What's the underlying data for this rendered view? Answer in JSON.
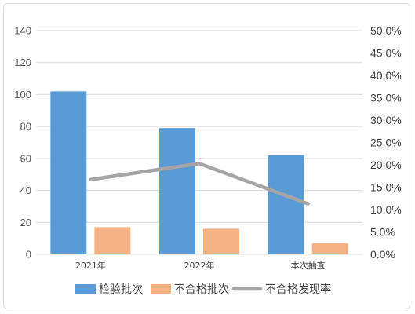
{
  "chart_data": {
    "type": "bar",
    "categories": [
      "2021年",
      "2022年",
      "本次抽查"
    ],
    "series": [
      {
        "name": "检验批次",
        "kind": "bar",
        "axis": "left",
        "color": "#5b9bd5",
        "values": [
          102,
          79,
          62
        ]
      },
      {
        "name": "不合格批次",
        "kind": "bar",
        "axis": "left",
        "color": "#f4b183",
        "values": [
          17,
          16,
          7
        ]
      },
      {
        "name": "不合格发现率",
        "kind": "line",
        "axis": "right",
        "color": "#a5a5a5",
        "values": [
          0.167,
          0.203,
          0.113
        ]
      }
    ],
    "y_left": {
      "min": 0,
      "max": 140,
      "step": 20,
      "ticks": [
        "0",
        "20",
        "40",
        "60",
        "80",
        "100",
        "120",
        "140"
      ]
    },
    "y_right": {
      "min": 0,
      "max": 0.5,
      "step": 0.05,
      "ticks": [
        "0.0%",
        "5.0%",
        "10.0%",
        "15.0%",
        "20.0%",
        "25.0%",
        "30.0%",
        "35.0%",
        "40.0%",
        "45.0%",
        "50.0%"
      ]
    },
    "grid": true,
    "legend": "bottom"
  }
}
